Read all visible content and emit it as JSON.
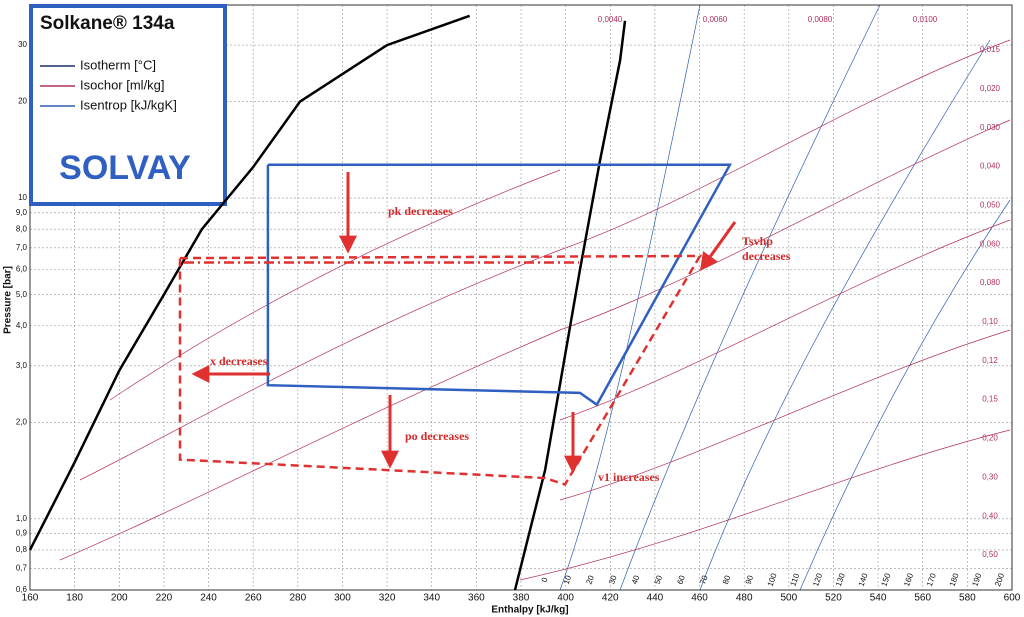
{
  "chart_data": {
    "type": "line",
    "xlabel": "Enthalpy [kJ/kg]",
    "ylabel": "Pressure [bar]",
    "log_y": true,
    "grid": true,
    "xlim": [
      160,
      600
    ],
    "xticks": [
      160,
      180,
      200,
      220,
      240,
      260,
      280,
      300,
      320,
      340,
      360,
      380,
      400,
      420,
      440,
      460,
      480,
      500,
      520,
      540,
      560,
      580,
      600
    ],
    "ylim": [
      0.6,
      40
    ],
    "yticks": [
      {
        "value": 0.6,
        "label": "0,6"
      },
      {
        "value": 0.7,
        "label": "0,7"
      },
      {
        "value": 0.8,
        "label": "0,8"
      },
      {
        "value": 0.9,
        "label": "0,9"
      },
      {
        "value": 1,
        "label": "1,0"
      },
      {
        "value": 2,
        "label": "2,0"
      },
      {
        "value": 3,
        "label": "3,0"
      },
      {
        "value": 4,
        "label": "4,0"
      },
      {
        "value": 5,
        "label": "5,0"
      },
      {
        "value": 6,
        "label": "6,0"
      },
      {
        "value": 7,
        "label": "7,0"
      },
      {
        "value": 8,
        "label": "8,0"
      },
      {
        "value": 9,
        "label": "9,0"
      },
      10,
      20,
      30
    ],
    "legend": {
      "title": "Solkane® 134a",
      "brand": "SOLVAY",
      "position": "upper left",
      "entries": [
        {
          "label": "Isotherm [°C]",
          "color": "#1a2f6e"
        },
        {
          "label": "Isochor [ml/kg]",
          "color": "#b0305a"
        },
        {
          "label": "Isentrop [kJ/kgK]",
          "color": "#2f5fb0"
        }
      ]
    },
    "series": [
      {
        "color": "#000000",
        "dash": "solid",
        "x": [
          160,
          180,
          200,
          220,
          237,
          260,
          281,
          320,
          357
        ],
        "values": [
          0.8,
          1.5,
          2.9,
          5,
          8,
          12.5,
          20,
          30,
          37
        ]
      },
      {
        "color": "#000000",
        "dash": "solid",
        "x": [
          377.3,
          390.8,
          406.4,
          415.4,
          424.4,
          426.6
        ],
        "values": [
          0.6,
          1.42,
          5.97,
          13.1,
          26.9,
          35.7
        ]
      },
      {
        "color": "#2f5fc0",
        "dash": "solid",
        "x": [
          266.6,
          473.6,
          414,
          406.4,
          266.6,
          266.6
        ],
        "values": [
          12.7,
          12.7,
          2.27,
          2.47,
          2.61,
          12.7
        ]
      },
      {
        "color": "#e03030",
        "dash": "dashed",
        "x": [
          227.2,
          460.2,
          399.7,
          390.8,
          227.2,
          227.2
        ],
        "values": [
          6.5,
          6.6,
          1.28,
          1.34,
          1.53,
          6.5
        ]
      },
      {
        "color": "#e03030",
        "dash": "dashdot",
        "x": [
          229,
          406
        ],
        "values": [
          6.3,
          6.3
        ]
      }
    ],
    "annotations": [
      "pk decreases",
      "Tsvhp",
      "decreases",
      "x decreases",
      "po decreases",
      "v1 increases"
    ],
    "isotherm_labels": [
      0,
      10,
      20,
      30,
      40,
      50,
      60,
      70,
      80,
      90,
      100,
      110,
      120,
      130,
      140,
      150,
      160,
      170,
      180,
      190,
      200
    ],
    "isochor_labels": [
      "0,0040",
      "0,0060",
      "0,0080",
      "0,0100",
      "0,015",
      "0,020",
      "0,030",
      "0,040",
      "0,050",
      "0,060",
      "0,080",
      "0,10",
      "0,12",
      "0,15",
      "0,20",
      "0,30",
      "0,40",
      "0,50"
    ]
  }
}
